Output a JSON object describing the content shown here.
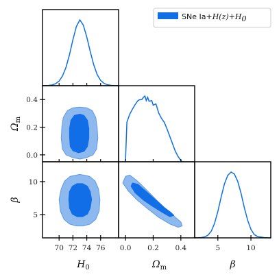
{
  "chart_data": {
    "type": "corner",
    "parameters": [
      {
        "id": "H0",
        "label_base": "H",
        "label_sub": "0",
        "range": [
          67.6,
          78.6
        ],
        "ticks": [
          70,
          72,
          74,
          76
        ]
      },
      {
        "id": "Om",
        "label_base": "Ω",
        "label_sub": "m",
        "range": [
          -0.05,
          0.5
        ],
        "ticks": [
          0.0,
          0.2,
          0.4
        ]
      },
      {
        "id": "beta",
        "label_base": "β",
        "label_sub": "",
        "range": [
          1.5,
          13.0
        ],
        "ticks": [
          5,
          10
        ]
      }
    ],
    "tick_labels": {
      "H0": [
        "70",
        "72",
        "74",
        "76"
      ],
      "Om_x": [
        "0.0",
        "0.2",
        "0.4"
      ],
      "Om_y": [
        "0.0",
        "0.2",
        "0.4"
      ],
      "beta_x": [
        "5",
        "10"
      ],
      "beta_y": [
        "5",
        "10"
      ]
    },
    "legend": {
      "label_prefix": "SNe Ia+",
      "label_math": "H(z)+H",
      "label_sub": "0",
      "placement": "top-right"
    },
    "series_color": "#0f6fe3",
    "inner_fill": "#116ee6",
    "outer_fill": "#8db9ef",
    "outer_stroke": "#5d9ae6",
    "marginals": {
      "H0": {
        "x": [
          67.6,
          68.5,
          69.0,
          69.5,
          70.0,
          70.5,
          71.0,
          71.5,
          72.0,
          72.5,
          73.0,
          73.5,
          74.0,
          74.5,
          75.0,
          75.5,
          76.0,
          76.5,
          77.0,
          77.5,
          78.0,
          78.6
        ],
        "y": [
          0.0,
          0.004,
          0.012,
          0.03,
          0.07,
          0.15,
          0.28,
          0.47,
          0.7,
          0.9,
          1.0,
          0.92,
          0.74,
          0.52,
          0.32,
          0.17,
          0.08,
          0.035,
          0.014,
          0.005,
          0.002,
          0.0
        ]
      },
      "Om": {
        "x": [
          0.0,
          0.01,
          0.02,
          0.03,
          0.05,
          0.07,
          0.09,
          0.1,
          0.12,
          0.13,
          0.14,
          0.15,
          0.16,
          0.17,
          0.19,
          0.2,
          0.22,
          0.24,
          0.26,
          0.28,
          0.3,
          0.33,
          0.36,
          0.38,
          0.4,
          0.41
        ],
        "y": [
          0.02,
          0.6,
          0.66,
          0.72,
          0.8,
          0.87,
          0.93,
          0.94,
          0.95,
          0.98,
          1.0,
          0.93,
          0.98,
          0.92,
          0.93,
          0.86,
          0.88,
          0.74,
          0.66,
          0.6,
          0.5,
          0.33,
          0.16,
          0.08,
          0.02,
          0.0
        ]
      },
      "beta": {
        "x": [
          1.5,
          2.5,
          3.0,
          3.5,
          4.0,
          4.5,
          5.0,
          5.5,
          6.0,
          6.5,
          7.0,
          7.5,
          8.0,
          8.5,
          9.0,
          9.5,
          10.0,
          10.5,
          11.0,
          12.0,
          13.0
        ],
        "y": [
          0.0,
          0.005,
          0.015,
          0.04,
          0.1,
          0.22,
          0.4,
          0.62,
          0.82,
          0.95,
          1.0,
          0.97,
          0.86,
          0.68,
          0.46,
          0.27,
          0.13,
          0.05,
          0.02,
          0.004,
          0.0
        ]
      }
    },
    "contours": {
      "H0_Om": {
        "outer": [
          [
            70.3,
            0.12
          ],
          [
            70.5,
            0.04
          ],
          [
            71.0,
            0.0
          ],
          [
            72.0,
            -0.02
          ],
          [
            73.0,
            -0.03
          ],
          [
            74.0,
            -0.02
          ],
          [
            74.9,
            0.0
          ],
          [
            75.4,
            0.04
          ],
          [
            75.6,
            0.12
          ],
          [
            75.5,
            0.2
          ],
          [
            75.3,
            0.27
          ],
          [
            74.8,
            0.32
          ],
          [
            74.0,
            0.34
          ],
          [
            73.0,
            0.345
          ],
          [
            72.0,
            0.34
          ],
          [
            71.2,
            0.32
          ],
          [
            70.6,
            0.27
          ],
          [
            70.4,
            0.2
          ]
        ],
        "inner": [
          [
            71.5,
            0.13
          ],
          [
            71.6,
            0.06
          ],
          [
            72.0,
            0.03
          ],
          [
            72.8,
            0.015
          ],
          [
            73.6,
            0.025
          ],
          [
            74.1,
            0.06
          ],
          [
            74.3,
            0.12
          ],
          [
            74.3,
            0.19
          ],
          [
            74.1,
            0.25
          ],
          [
            73.6,
            0.285
          ],
          [
            73.0,
            0.295
          ],
          [
            72.2,
            0.285
          ],
          [
            71.7,
            0.25
          ],
          [
            71.5,
            0.19
          ]
        ]
      },
      "H0_beta": {
        "outer": [
          [
            70.0,
            7.3
          ],
          [
            70.2,
            5.5
          ],
          [
            70.7,
            4.3
          ],
          [
            71.5,
            3.6
          ],
          [
            72.5,
            3.3
          ],
          [
            73.5,
            3.3
          ],
          [
            74.5,
            3.6
          ],
          [
            75.3,
            4.3
          ],
          [
            75.8,
            5.6
          ],
          [
            75.9,
            7.3
          ],
          [
            75.7,
            8.9
          ],
          [
            75.2,
            10.1
          ],
          [
            74.4,
            10.8
          ],
          [
            73.0,
            11.1
          ],
          [
            71.6,
            10.8
          ],
          [
            70.8,
            10.1
          ],
          [
            70.3,
            8.9
          ]
        ],
        "inner": [
          [
            71.4,
            7.3
          ],
          [
            71.5,
            6.0
          ],
          [
            71.9,
            5.1
          ],
          [
            72.6,
            4.7
          ],
          [
            73.4,
            4.7
          ],
          [
            74.1,
            5.1
          ],
          [
            74.5,
            6.0
          ],
          [
            74.7,
            7.3
          ],
          [
            74.5,
            8.5
          ],
          [
            74.1,
            9.3
          ],
          [
            73.4,
            9.7
          ],
          [
            72.6,
            9.7
          ],
          [
            71.9,
            9.3
          ],
          [
            71.5,
            8.5
          ]
        ]
      },
      "Om_beta": {
        "outer": [
          [
            -0.02,
            9.8
          ],
          [
            0.0,
            10.8
          ],
          [
            0.03,
            11.0
          ],
          [
            0.08,
            10.2
          ],
          [
            0.15,
            8.8
          ],
          [
            0.22,
            7.3
          ],
          [
            0.29,
            5.9
          ],
          [
            0.35,
            4.8
          ],
          [
            0.4,
            3.9
          ],
          [
            0.41,
            3.3
          ],
          [
            0.38,
            3.1
          ],
          [
            0.32,
            3.6
          ],
          [
            0.24,
            4.6
          ],
          [
            0.16,
            5.9
          ],
          [
            0.08,
            7.3
          ],
          [
            0.02,
            8.6
          ]
        ],
        "inner": [
          [
            0.04,
            9.3
          ],
          [
            0.05,
            9.8
          ],
          [
            0.09,
            9.6
          ],
          [
            0.15,
            8.5
          ],
          [
            0.22,
            7.2
          ],
          [
            0.28,
            6.1
          ],
          [
            0.33,
            5.3
          ],
          [
            0.35,
            4.9
          ],
          [
            0.32,
            4.7
          ],
          [
            0.27,
            5.3
          ],
          [
            0.2,
            6.2
          ],
          [
            0.13,
            7.2
          ],
          [
            0.07,
            8.3
          ]
        ]
      }
    }
  }
}
